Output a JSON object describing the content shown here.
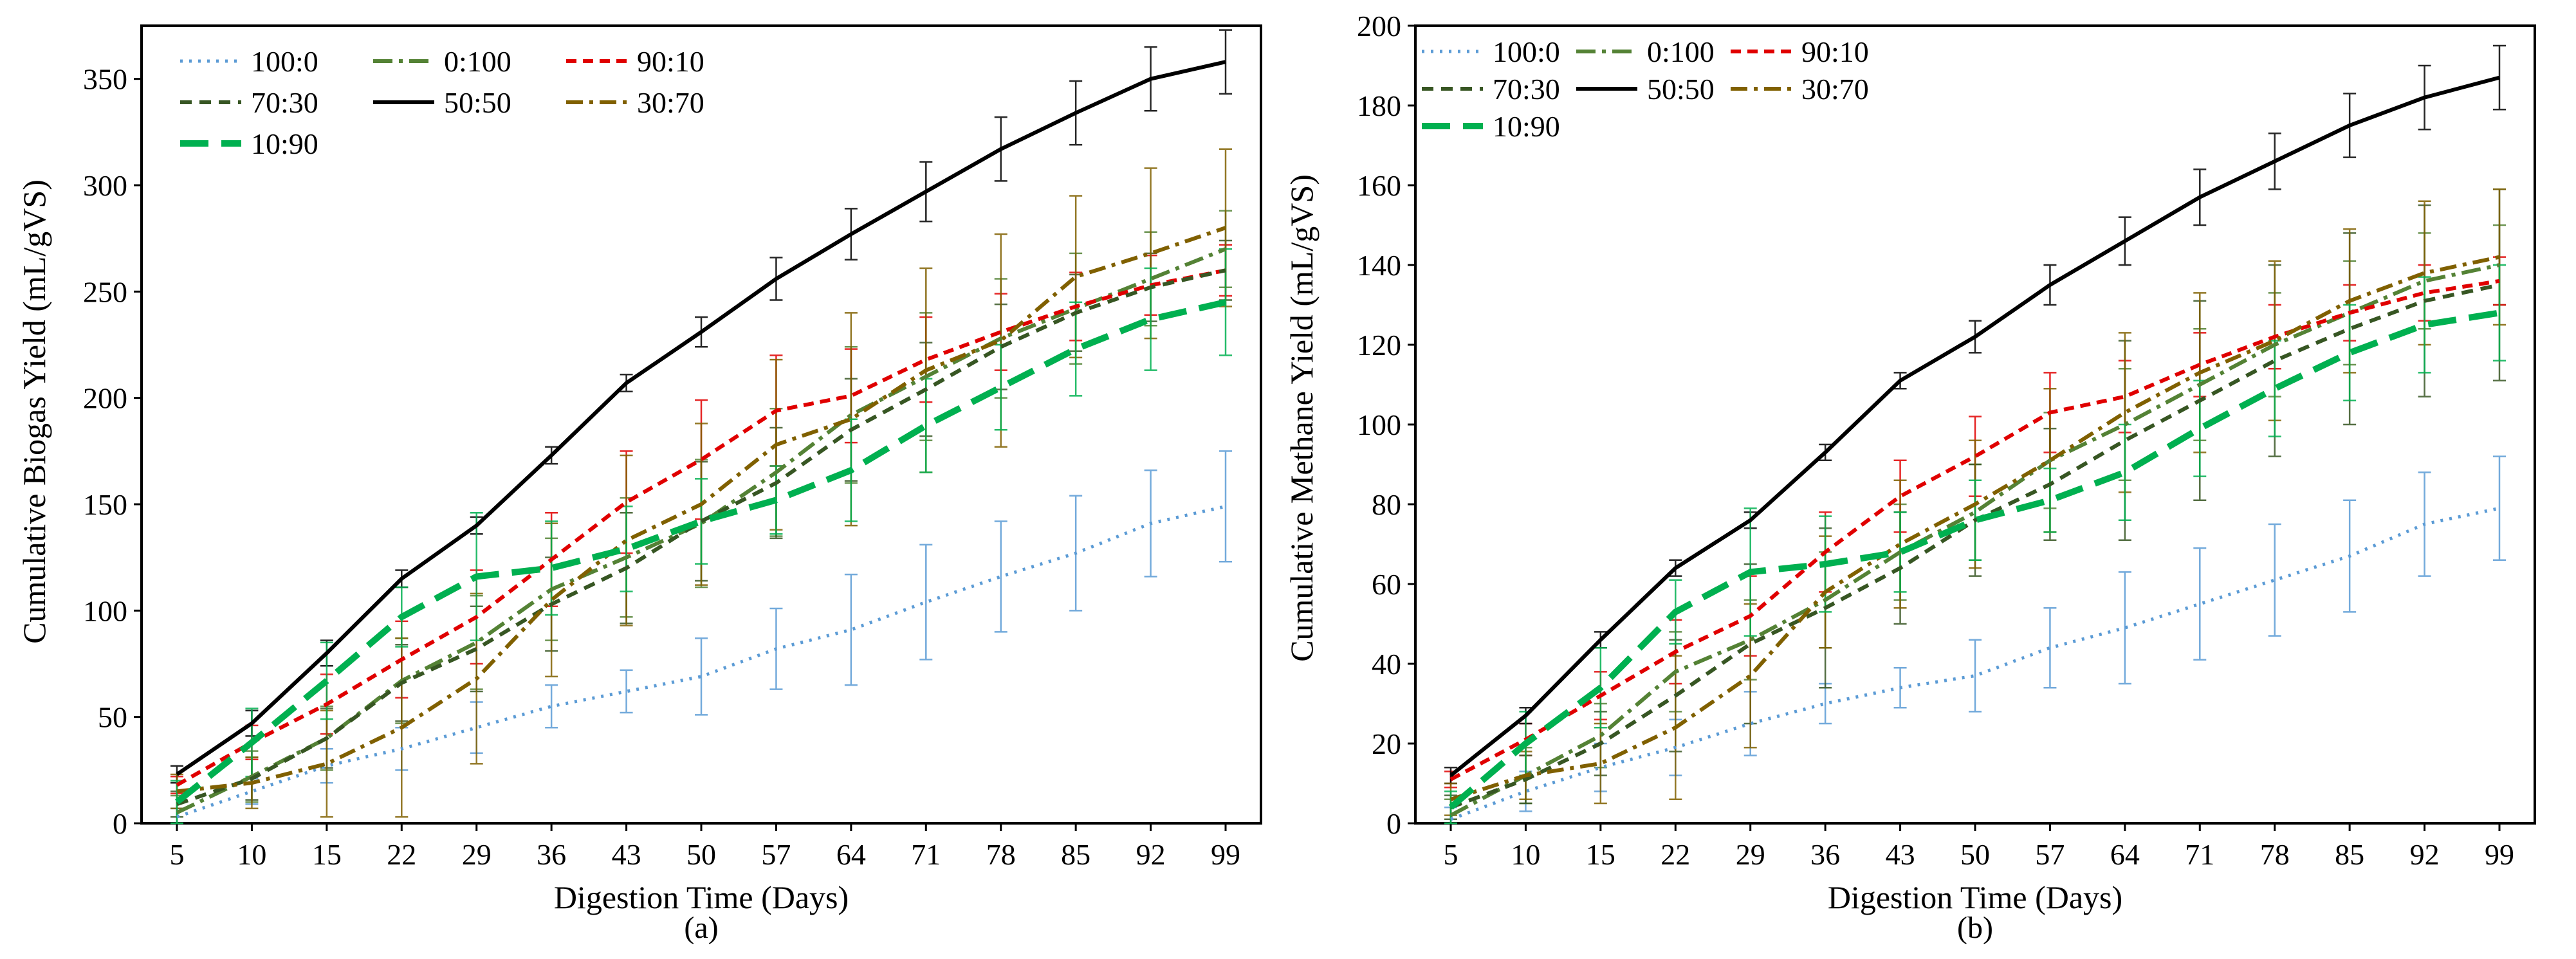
{
  "styles": {
    "100:0": {
      "color": "#5b9bd5",
      "dash": "4 10",
      "width": 5
    },
    "0:100": {
      "color": "#548235",
      "dash": "30 10 6 10",
      "width": 6
    },
    "90:10": {
      "color": "#e00000",
      "dash": "16 10",
      "width": 6
    },
    "70:30": {
      "color": "#375623",
      "dash": "18 12",
      "width": 6
    },
    "50:50": {
      "color": "#000000",
      "dash": "",
      "width": 6
    },
    "30:70": {
      "color": "#806000",
      "dash": "26 10 6 10",
      "width": 6
    },
    "10:90": {
      "color": "#00b050",
      "dash": "44 20",
      "width": 10
    }
  },
  "chart_data": [
    {
      "type": "line",
      "sublabel": "(a)",
      "xlabel": "Digestion Time (Days)",
      "ylabel": "Cumulative Biogas  Yield (mL/gVS)",
      "ylim": [
        0,
        375
      ],
      "yticks": [
        0,
        50,
        100,
        150,
        200,
        250,
        300,
        350
      ],
      "categories": [
        "5",
        "10",
        "15",
        "22",
        "29",
        "36",
        "43",
        "50",
        "57",
        "64",
        "71",
        "78",
        "85",
        "92",
        "99"
      ],
      "legend_rows": [
        [
          "100:0",
          "0:100",
          "90:10"
        ],
        [
          "70:30",
          "50:50",
          "30:70"
        ],
        [
          "10:90"
        ]
      ],
      "series": [
        {
          "name": "100:0",
          "values": [
            3,
            15,
            27,
            35,
            45,
            55,
            62,
            69,
            82,
            91,
            104,
            116,
            127,
            141,
            149
          ],
          "err": [
            4,
            6,
            8,
            10,
            12,
            10,
            10,
            18,
            19,
            26,
            27,
            26,
            27,
            25,
            26
          ]
        },
        {
          "name": "0:100",
          "values": [
            5,
            22,
            40,
            67,
            85,
            110,
            125,
            141,
            165,
            192,
            210,
            228,
            242,
            256,
            270
          ],
          "err": [
            8,
            12,
            15,
            20,
            22,
            24,
            28,
            30,
            30,
            32,
            30,
            28,
            26,
            22,
            18
          ]
        },
        {
          "name": "90:10",
          "values": [
            18,
            38,
            56,
            77,
            97,
            124,
            151,
            171,
            194,
            201,
            218,
            231,
            243,
            253,
            260
          ],
          "err": [
            4,
            8,
            14,
            18,
            22,
            22,
            24,
            28,
            26,
            22,
            20,
            18,
            16,
            14,
            12
          ]
        },
        {
          "name": "70:30",
          "values": [
            9,
            21,
            40,
            66,
            82,
            103,
            120,
            142,
            160,
            185,
            204,
            224,
            240,
            252,
            260
          ],
          "err": [
            6,
            10,
            14,
            18,
            20,
            22,
            26,
            28,
            26,
            24,
            22,
            20,
            18,
            16,
            14
          ]
        },
        {
          "name": "50:50",
          "values": [
            23,
            47,
            80,
            115,
            140,
            173,
            207,
            231,
            256,
            277,
            297,
            317,
            334,
            350,
            358
          ],
          "err": [
            4,
            6,
            6,
            4,
            4,
            4,
            4,
            7,
            10,
            12,
            14,
            15,
            15,
            15,
            15
          ]
        },
        {
          "name": "30:70",
          "values": [
            15,
            19,
            28,
            45,
            68,
            105,
            133,
            150,
            178,
            190,
            213,
            227,
            257,
            268,
            280
          ],
          "err": [
            8,
            12,
            25,
            42,
            40,
            36,
            40,
            38,
            40,
            50,
            48,
            50,
            38,
            40,
            37
          ]
        },
        {
          "name": "10:90",
          "values": [
            10,
            38,
            67,
            97,
            116,
            120,
            129,
            142,
            152,
            166,
            187,
            205,
            223,
            237,
            245
          ],
          "err": [
            10,
            16,
            18,
            14,
            30,
            22,
            20,
            20,
            16,
            24,
            22,
            20,
            22,
            24,
            25
          ]
        }
      ]
    },
    {
      "type": "line",
      "sublabel": "(b)",
      "xlabel": "Digestion Time (Days)",
      "ylabel": "Cumulative Methane  Yield (mL/gVS)",
      "ylim": [
        0,
        200
      ],
      "yticks": [
        0,
        20,
        40,
        60,
        80,
        100,
        120,
        140,
        160,
        180,
        200
      ],
      "categories": [
        "5",
        "10",
        "15",
        "22",
        "29",
        "36",
        "43",
        "50",
        "57",
        "64",
        "71",
        "78",
        "85",
        "92",
        "99"
      ],
      "legend_rows": [
        [
          "100:0",
          "0:100",
          "90:10"
        ],
        [
          "70:30",
          "50:50",
          "30:70"
        ],
        [
          "10:90"
        ]
      ],
      "series": [
        {
          "name": "100:0",
          "values": [
            1,
            8,
            14,
            19,
            25,
            30,
            34,
            37,
            44,
            49,
            55,
            61,
            67,
            75,
            79
          ],
          "err": [
            3,
            5,
            6,
            7,
            8,
            5,
            5,
            9,
            10,
            14,
            14,
            14,
            14,
            13,
            13
          ]
        },
        {
          "name": "0:100",
          "values": [
            2,
            12,
            22,
            38,
            46,
            56,
            68,
            78,
            91,
            100,
            110,
            120,
            128,
            136,
            140
          ],
          "err": [
            4,
            7,
            8,
            10,
            10,
            12,
            12,
            12,
            12,
            14,
            14,
            13,
            13,
            12,
            10
          ]
        },
        {
          "name": "90:10",
          "values": [
            11,
            21,
            32,
            43,
            52,
            68,
            82,
            92,
            103,
            107,
            115,
            122,
            128,
            133,
            136
          ],
          "err": [
            2,
            4,
            6,
            8,
            10,
            10,
            9,
            10,
            10,
            9,
            8,
            8,
            7,
            7,
            6
          ]
        },
        {
          "name": "70:30",
          "values": [
            4,
            11,
            20,
            32,
            45,
            54,
            64,
            76,
            85,
            96,
            106,
            116,
            124,
            131,
            135
          ],
          "err": [
            3,
            6,
            8,
            14,
            20,
            20,
            14,
            14,
            14,
            25,
            25,
            24,
            24,
            24,
            24
          ]
        },
        {
          "name": "50:50",
          "values": [
            12,
            27,
            46,
            64,
            76,
            93,
            111,
            122,
            135,
            146,
            157,
            166,
            175,
            182,
            187
          ],
          "err": [
            2,
            2,
            2,
            2,
            2,
            2,
            2,
            4,
            5,
            6,
            7,
            7,
            8,
            8,
            8
          ]
        },
        {
          "name": "30:70",
          "values": [
            6,
            12,
            15,
            24,
            37,
            58,
            70,
            80,
            91,
            103,
            113,
            121,
            131,
            138,
            142
          ],
          "err": [
            4,
            6,
            10,
            18,
            18,
            14,
            16,
            16,
            18,
            20,
            20,
            20,
            18,
            18,
            17
          ]
        },
        {
          "name": "10:90",
          "values": [
            4,
            20,
            34,
            53,
            63,
            65,
            68,
            76,
            81,
            88,
            99,
            109,
            118,
            125,
            128
          ],
          "err": [
            4,
            8,
            10,
            8,
            16,
            12,
            10,
            10,
            8,
            12,
            12,
            12,
            12,
            12,
            12
          ]
        }
      ]
    }
  ]
}
